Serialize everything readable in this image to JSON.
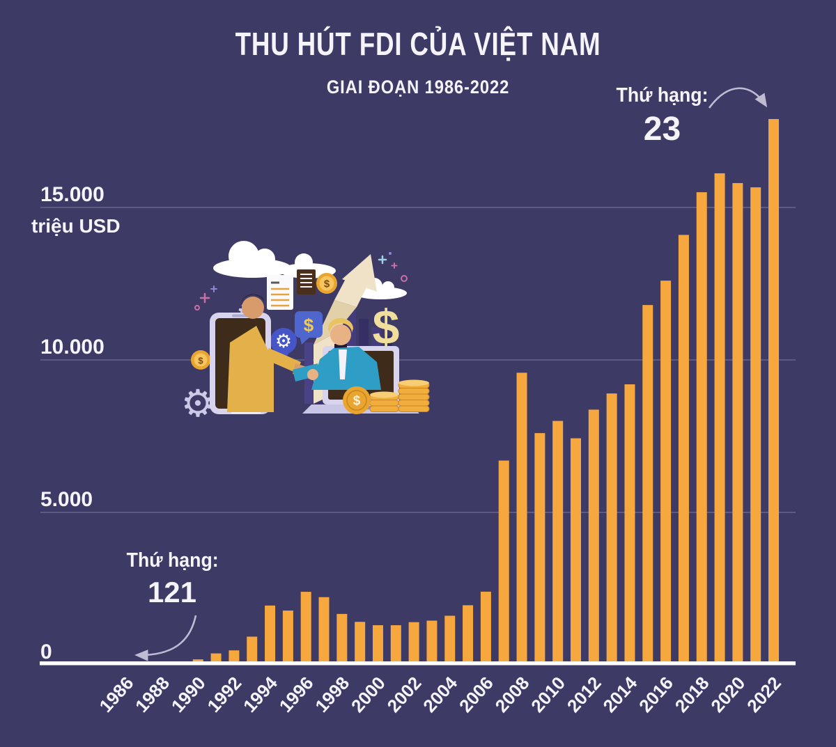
{
  "title": "THU HÚT FDI CỦA VIỆT NAM",
  "subtitle": "GIAI ĐOẠN 1986-2022",
  "y_axis": {
    "unit_label": "triệu USD",
    "ticks": [
      {
        "value": 15000,
        "label": "15.000"
      },
      {
        "value": 10000,
        "label": "10.000"
      },
      {
        "value": 5000,
        "label": "5.000"
      },
      {
        "value": 0,
        "label": "0"
      }
    ]
  },
  "annotations": {
    "end": {
      "label": "Thứ hạng:",
      "value": "23",
      "target_year": 2022
    },
    "start": {
      "label": "Thứ hạng:",
      "value": "121",
      "target_year": 1986
    }
  },
  "colors": {
    "background": "#3E3A66",
    "bar": "#F6A73E",
    "gridline": "#8D8AAC",
    "axis": "#FFFFFF",
    "text": "#F5F4FA",
    "arrow": "#BEBBD2"
  },
  "chart_data": {
    "type": "bar",
    "title": "THU HÚT FDI CỦA VIỆT NAM",
    "subtitle": "GIAI ĐOẠN 1986-2022",
    "ylabel": "triệu USD",
    "ylim": [
      0,
      18500
    ],
    "grid": true,
    "bar_color": "#F6A73E",
    "x": [
      1986,
      1987,
      1988,
      1989,
      1990,
      1991,
      1992,
      1993,
      1994,
      1995,
      1996,
      1997,
      1998,
      1999,
      2000,
      2001,
      2002,
      2003,
      2004,
      2005,
      2006,
      2007,
      2008,
      2009,
      2010,
      2011,
      2012,
      2013,
      2014,
      2015,
      2016,
      2017,
      2018,
      2019,
      2020,
      2021,
      2022
    ],
    "values": [
      40,
      10,
      10,
      100,
      180,
      375,
      475,
      925,
      1945,
      1780,
      2395,
      2220,
      1670,
      1410,
      1300,
      1300,
      1400,
      1450,
      1610,
      1955,
      2400,
      6700,
      9580,
      7600,
      8000,
      7430,
      8370,
      8900,
      9200,
      11800,
      12600,
      14100,
      15500,
      16120,
      15800,
      15660,
      17900
    ],
    "x_tick_labels": [
      "1986",
      "1988",
      "1990",
      "1992",
      "1994",
      "1996",
      "1998",
      "2000",
      "2002",
      "2004",
      "2006",
      "2008",
      "2010",
      "2012",
      "2014",
      "2016",
      "2018",
      "2020",
      "2022"
    ]
  }
}
